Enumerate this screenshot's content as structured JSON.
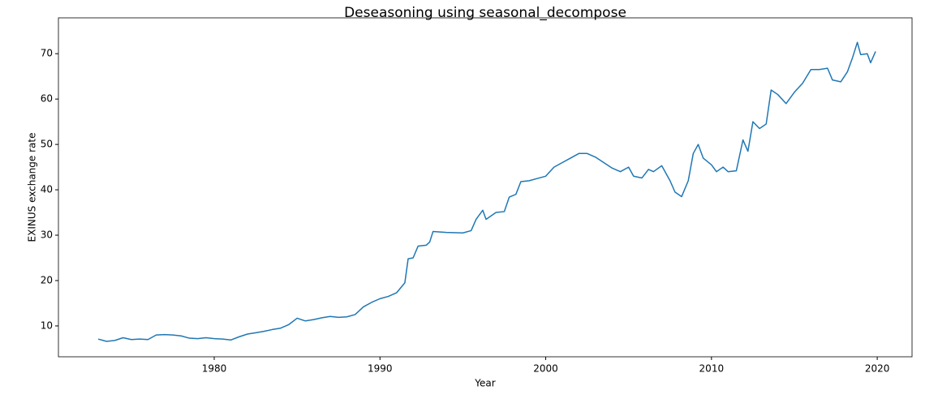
{
  "chart_data": {
    "type": "line",
    "title": "Deseasoning using seasonal_decompose",
    "xlabel": "Year",
    "ylabel": "EXINUS exchange rate",
    "x": [
      1973.0,
      1973.5,
      1974.0,
      1974.5,
      1975.0,
      1975.5,
      1976.0,
      1976.5,
      1977.0,
      1977.5,
      1978.0,
      1978.5,
      1979.0,
      1979.5,
      1980.0,
      1980.5,
      1981.0,
      1981.5,
      1982.0,
      1982.5,
      1983.0,
      1983.5,
      1984.0,
      1984.5,
      1985.0,
      1985.5,
      1986.0,
      1986.5,
      1987.0,
      1987.5,
      1988.0,
      1988.5,
      1989.0,
      1989.5,
      1990.0,
      1990.5,
      1991.0,
      1991.5,
      1991.7,
      1992.0,
      1992.3,
      1992.8,
      1993.0,
      1993.2,
      1994.0,
      1995.0,
      1995.5,
      1995.8,
      1996.2,
      1996.4,
      1997.0,
      1997.5,
      1997.8,
      1998.2,
      1998.5,
      1999.0,
      1999.5,
      2000.0,
      2000.5,
      2001.0,
      2001.5,
      2002.0,
      2002.5,
      2003.0,
      2003.5,
      2004.0,
      2004.5,
      2005.0,
      2005.3,
      2005.8,
      2006.2,
      2006.5,
      2007.0,
      2007.5,
      2007.8,
      2008.2,
      2008.6,
      2008.9,
      2009.2,
      2009.5,
      2010.0,
      2010.3,
      2010.7,
      2011.0,
      2011.5,
      2011.9,
      2012.2,
      2012.5,
      2012.9,
      2013.3,
      2013.6,
      2014.0,
      2014.5,
      2015.0,
      2015.5,
      2016.0,
      2016.5,
      2017.0,
      2017.3,
      2017.8,
      2018.2,
      2018.5,
      2018.8,
      2019.0,
      2019.4,
      2019.6,
      2019.9
    ],
    "series": [
      {
        "name": "EXINUS",
        "color": "#1f77b4",
        "values": [
          7.1,
          6.6,
          6.8,
          7.4,
          7.0,
          7.1,
          7.0,
          8.0,
          8.1,
          8.0,
          7.8,
          7.3,
          7.2,
          7.4,
          7.2,
          7.1,
          6.9,
          7.6,
          8.2,
          8.5,
          8.8,
          9.2,
          9.5,
          10.3,
          11.7,
          11.1,
          11.4,
          11.8,
          12.1,
          11.9,
          12.0,
          12.5,
          14.2,
          15.2,
          16.0,
          16.5,
          17.3,
          19.5,
          24.8,
          25.0,
          27.6,
          27.8,
          28.5,
          30.8,
          30.6,
          30.5,
          31.0,
          33.5,
          35.5,
          33.5,
          35.0,
          35.2,
          38.4,
          39.0,
          41.8,
          42.0,
          42.5,
          43.0,
          45.0,
          46.0,
          47.0,
          48.0,
          48.0,
          47.2,
          46.0,
          44.8,
          44.0,
          45.0,
          43.0,
          42.6,
          44.5,
          44.0,
          45.3,
          42.0,
          39.5,
          38.5,
          42.0,
          48.0,
          50.0,
          47.0,
          45.5,
          44.0,
          45.0,
          44.0,
          44.2,
          51.0,
          48.5,
          55.0,
          53.5,
          54.5,
          62.0,
          61.0,
          59.0,
          61.5,
          63.5,
          66.5,
          66.5,
          66.8,
          64.2,
          63.8,
          66.0,
          69.0,
          72.5,
          69.8,
          70.0,
          68.0,
          70.5
        ]
      }
    ],
    "xlim": [
      1970.6,
      2022.1
    ],
    "xticks": [
      1980,
      1990,
      2000,
      2010,
      2020
    ],
    "ylim": [
      3.2,
      77.9
    ],
    "yticks": [
      10,
      20,
      30,
      40,
      50,
      60,
      70
    ]
  }
}
